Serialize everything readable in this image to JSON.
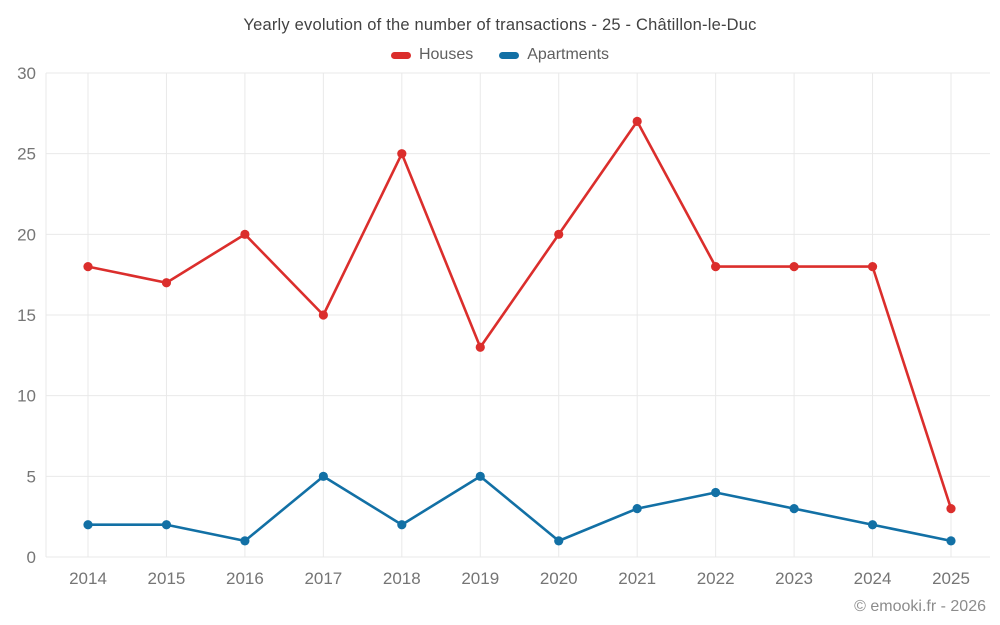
{
  "title": "Yearly evolution of the number of transactions - 25 - Châtillon-le-Duc",
  "legend": {
    "items": [
      {
        "label": "Houses",
        "color": "#db2e2c"
      },
      {
        "label": "Apartments",
        "color": "#1270a5"
      }
    ]
  },
  "footer": {
    "copyright": "© emooki.fr - 2026"
  },
  "colors": {
    "houses": "#db2e2c",
    "apartments": "#1270a5",
    "gridline": "#e9e9e9",
    "tick_text": "#757575",
    "title_text": "#424242"
  },
  "chart_data": {
    "type": "line",
    "title": "Yearly evolution of the number of transactions - 25 - Châtillon-le-Duc",
    "categories": [
      "2014",
      "2015",
      "2016",
      "2017",
      "2018",
      "2019",
      "2020",
      "2021",
      "2022",
      "2023",
      "2024",
      "2025"
    ],
    "series": [
      {
        "name": "Houses",
        "color": "#db2e2c",
        "values": [
          18,
          17,
          20,
          15,
          25,
          13,
          20,
          27,
          18,
          18,
          18,
          3
        ]
      },
      {
        "name": "Apartments",
        "color": "#1270a5",
        "values": [
          2,
          2,
          1,
          5,
          2,
          5,
          1,
          3,
          4,
          3,
          2,
          1
        ]
      }
    ],
    "xlabel": "",
    "ylabel": "",
    "ylim": [
      0,
      30
    ],
    "yticks": [
      0,
      5,
      10,
      15,
      20,
      25,
      30
    ],
    "grid": true,
    "legend_position": "top"
  }
}
